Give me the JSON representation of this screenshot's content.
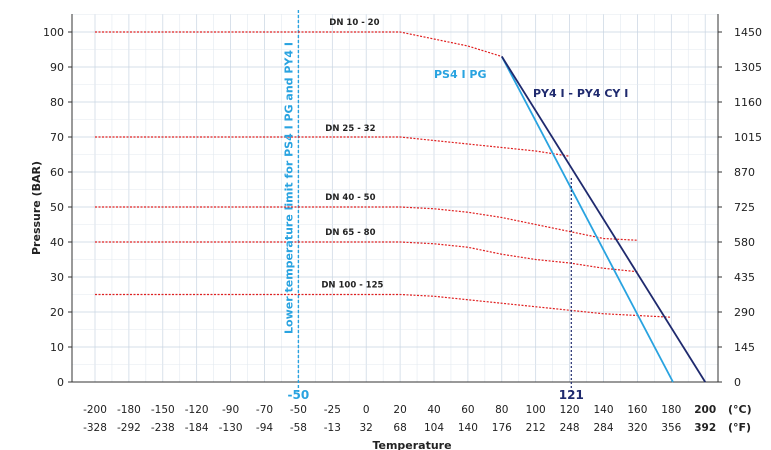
{
  "chart_data": {
    "type": "line",
    "title": "",
    "xlabel": "Temperature",
    "ylabel": "Pressure (BAR)",
    "x_categories_c": [
      "-200",
      "-180",
      "-150",
      "-120",
      "-90",
      "-70",
      "-50",
      "-25",
      "0",
      "20",
      "40",
      "60",
      "80",
      "100",
      "120",
      "140",
      "160",
      "180",
      "200"
    ],
    "x_categories_f": [
      "-328",
      "-292",
      "-238",
      "-184",
      "-130",
      "-94",
      "-58",
      "-13",
      "32",
      "68",
      "104",
      "140",
      "176",
      "212",
      "248",
      "284",
      "320",
      "356",
      "392"
    ],
    "x_unit_c": "(°C)",
    "x_unit_f": "(°F)",
    "y_left_ticks": [
      "0",
      "10",
      "20",
      "30",
      "40",
      "50",
      "60",
      "70",
      "80",
      "90",
      "100"
    ],
    "y_right_ticks": [
      "0",
      "145",
      "290",
      "435",
      "580",
      "725",
      "870",
      "1015",
      "1160",
      "1305",
      "1450"
    ],
    "ylim": [
      0,
      105
    ],
    "grid": true,
    "colors": {
      "dn_curves": "#e02020",
      "ps41pg": "#29a3e0",
      "py41": "#1f2a6e",
      "lower_limit": "#29a3e0",
      "marker_121": "#1f2a6e",
      "grid": "#c8d4e2"
    },
    "lower_limit": {
      "x": "-50",
      "label": "Lower temperature limit for PS4 I PG and PY4 I",
      "marker": "-50"
    },
    "marker_121": {
      "x_c": 121,
      "label": "121"
    },
    "series": [
      {
        "name": "DN 10 - 20",
        "points": [
          [
            "-200",
            100
          ],
          [
            "20",
            100
          ],
          [
            "40",
            98
          ],
          [
            "60",
            96
          ],
          [
            "80",
            93
          ]
        ]
      },
      {
        "name": "DN 25 - 32",
        "points": [
          [
            "-200",
            70
          ],
          [
            "20",
            70
          ],
          [
            "40",
            69
          ],
          [
            "60",
            68
          ],
          [
            "80",
            67
          ],
          [
            "100",
            66
          ],
          [
            "120",
            64.5
          ]
        ]
      },
      {
        "name": "DN 40 - 50",
        "points": [
          [
            "-200",
            50
          ],
          [
            "20",
            50
          ],
          [
            "40",
            49.5
          ],
          [
            "60",
            48.5
          ],
          [
            "80",
            47
          ],
          [
            "100",
            45
          ],
          [
            "120",
            43
          ],
          [
            "140",
            41
          ],
          [
            "160",
            40.5
          ]
        ]
      },
      {
        "name": "DN 65 - 80",
        "points": [
          [
            "-200",
            40
          ],
          [
            "20",
            40
          ],
          [
            "40",
            39.5
          ],
          [
            "60",
            38.5
          ],
          [
            "80",
            36.5
          ],
          [
            "100",
            35
          ],
          [
            "120",
            34
          ],
          [
            "140",
            32.5
          ],
          [
            "160",
            31.5
          ]
        ]
      },
      {
        "name": "DN 100 - 125",
        "points": [
          [
            "-200",
            25
          ],
          [
            "20",
            25
          ],
          [
            "40",
            24.5
          ],
          [
            "60",
            23.5
          ],
          [
            "80",
            22.5
          ],
          [
            "100",
            21.5
          ],
          [
            "120",
            20.5
          ],
          [
            "140",
            19.5
          ],
          [
            "160",
            19
          ],
          [
            "180",
            18.5
          ]
        ]
      },
      {
        "name": "PS4 I PG",
        "points": [
          [
            "80",
            93
          ],
          [
            "180",
            0
          ]
        ]
      },
      {
        "name": "PY4 I - PY4 CY I",
        "points": [
          [
            "80",
            93
          ],
          [
            "200",
            0
          ]
        ]
      }
    ]
  }
}
